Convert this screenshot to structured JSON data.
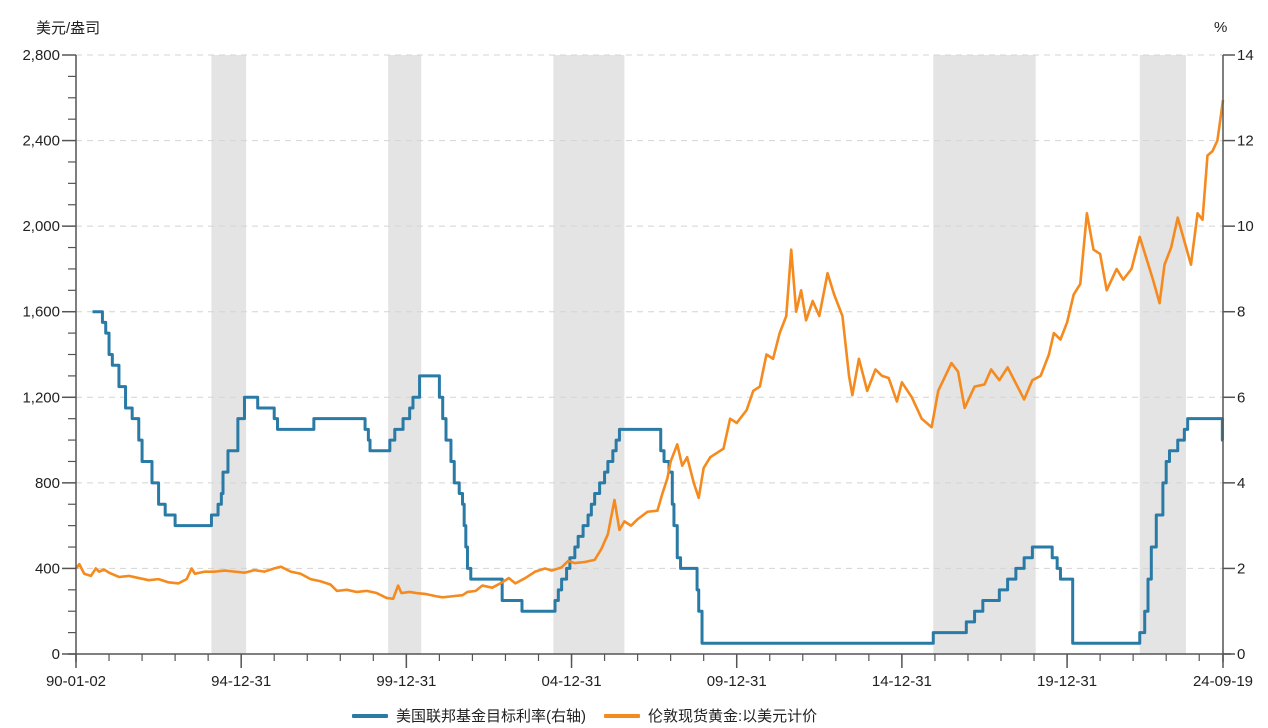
{
  "chart_data": {
    "type": "line",
    "title": "",
    "y_left_label": "美元/盎司",
    "y_right_label": "%",
    "y_left": {
      "min": 0,
      "max": 2800,
      "ticks": [
        0,
        400,
        800,
        1200,
        1600,
        2000,
        2400,
        2800
      ],
      "tick_labels": [
        "0",
        "400",
        "800",
        "1,200",
        "1,600",
        "2,000",
        "2,400",
        "2,800"
      ]
    },
    "y_right": {
      "min": 0,
      "max": 14,
      "ticks": [
        0,
        2,
        4,
        6,
        8,
        10,
        12,
        14
      ],
      "tick_labels": [
        "0",
        "2",
        "4",
        "6",
        "8",
        "10",
        "12",
        "14"
      ]
    },
    "x": {
      "start": 1990.0,
      "end": 2024.72,
      "major_ticks": [
        1990.0,
        1995.0,
        2000.0,
        2005.0,
        2010.0,
        2015.0,
        2020.0,
        2024.72
      ],
      "tick_labels": [
        "90-01-02",
        "94-12-31",
        "99-12-31",
        "04-12-31",
        "09-12-31",
        "14-12-31",
        "19-12-31",
        "24-09-19"
      ]
    },
    "grid": true,
    "legend_position": "bottom",
    "shaded_bands": [
      [
        1994.1,
        1995.15
      ],
      [
        1999.45,
        2000.45
      ],
      [
        2004.45,
        2006.6
      ],
      [
        2015.95,
        2019.05
      ],
      [
        2022.2,
        2023.6
      ]
    ],
    "series": [
      {
        "name": "美国联邦基金目标利率(右轴)",
        "axis": "right",
        "color": "#2a7aa6",
        "step": true,
        "points": [
          [
            1990.5,
            8.0
          ],
          [
            1990.8,
            7.75
          ],
          [
            1990.9,
            7.5
          ],
          [
            1991.0,
            7.0
          ],
          [
            1991.1,
            6.75
          ],
          [
            1991.3,
            6.25
          ],
          [
            1991.5,
            5.75
          ],
          [
            1991.7,
            5.5
          ],
          [
            1991.9,
            5.0
          ],
          [
            1992.0,
            4.5
          ],
          [
            1992.3,
            4.0
          ],
          [
            1992.5,
            3.5
          ],
          [
            1992.7,
            3.25
          ],
          [
            1993.0,
            3.0
          ],
          [
            1994.1,
            3.25
          ],
          [
            1994.3,
            3.5
          ],
          [
            1994.4,
            3.75
          ],
          [
            1994.45,
            4.25
          ],
          [
            1994.6,
            4.75
          ],
          [
            1994.9,
            5.5
          ],
          [
            1995.1,
            6.0
          ],
          [
            1995.5,
            5.75
          ],
          [
            1996.0,
            5.5
          ],
          [
            1996.1,
            5.25
          ],
          [
            1997.2,
            5.5
          ],
          [
            1998.75,
            5.25
          ],
          [
            1998.85,
            5.0
          ],
          [
            1998.9,
            4.75
          ],
          [
            1999.5,
            5.0
          ],
          [
            1999.65,
            5.25
          ],
          [
            1999.9,
            5.5
          ],
          [
            2000.1,
            5.75
          ],
          [
            2000.2,
            6.0
          ],
          [
            2000.4,
            6.5
          ],
          [
            2001.0,
            6.0
          ],
          [
            2001.1,
            5.5
          ],
          [
            2001.2,
            5.0
          ],
          [
            2001.35,
            4.5
          ],
          [
            2001.45,
            4.0
          ],
          [
            2001.6,
            3.75
          ],
          [
            2001.7,
            3.5
          ],
          [
            2001.75,
            3.0
          ],
          [
            2001.8,
            2.5
          ],
          [
            2001.85,
            2.0
          ],
          [
            2001.95,
            1.75
          ],
          [
            2002.9,
            1.25
          ],
          [
            2003.5,
            1.0
          ],
          [
            2004.5,
            1.25
          ],
          [
            2004.6,
            1.5
          ],
          [
            2004.7,
            1.75
          ],
          [
            2004.85,
            2.0
          ],
          [
            2004.95,
            2.25
          ],
          [
            2005.1,
            2.5
          ],
          [
            2005.2,
            2.75
          ],
          [
            2005.35,
            3.0
          ],
          [
            2005.5,
            3.25
          ],
          [
            2005.6,
            3.5
          ],
          [
            2005.7,
            3.75
          ],
          [
            2005.85,
            4.0
          ],
          [
            2006.0,
            4.25
          ],
          [
            2006.1,
            4.5
          ],
          [
            2006.25,
            4.75
          ],
          [
            2006.35,
            5.0
          ],
          [
            2006.45,
            5.25
          ],
          [
            2007.7,
            4.75
          ],
          [
            2007.8,
            4.5
          ],
          [
            2007.95,
            4.25
          ],
          [
            2008.05,
            3.5
          ],
          [
            2008.1,
            3.0
          ],
          [
            2008.2,
            2.25
          ],
          [
            2008.3,
            2.0
          ],
          [
            2008.8,
            1.5
          ],
          [
            2008.85,
            1.0
          ],
          [
            2008.95,
            0.25
          ],
          [
            2015.95,
            0.5
          ],
          [
            2016.95,
            0.75
          ],
          [
            2017.2,
            1.0
          ],
          [
            2017.45,
            1.25
          ],
          [
            2017.95,
            1.5
          ],
          [
            2018.2,
            1.75
          ],
          [
            2018.45,
            2.0
          ],
          [
            2018.7,
            2.25
          ],
          [
            2018.95,
            2.5
          ],
          [
            2019.55,
            2.25
          ],
          [
            2019.7,
            2.0
          ],
          [
            2019.8,
            1.75
          ],
          [
            2020.17,
            0.25
          ],
          [
            2022.2,
            0.5
          ],
          [
            2022.35,
            1.0
          ],
          [
            2022.45,
            1.75
          ],
          [
            2022.55,
            2.5
          ],
          [
            2022.7,
            3.25
          ],
          [
            2022.9,
            4.0
          ],
          [
            2023.0,
            4.5
          ],
          [
            2023.1,
            4.75
          ],
          [
            2023.35,
            5.0
          ],
          [
            2023.55,
            5.25
          ],
          [
            2023.65,
            5.5
          ],
          [
            2024.7,
            5.0
          ],
          [
            2024.72,
            5.0
          ]
        ]
      },
      {
        "name": "伦敦现货黄金:以美元计价",
        "axis": "left",
        "color": "#f58a1f",
        "step": false,
        "points": [
          [
            1990.0,
            400
          ],
          [
            1990.1,
            420
          ],
          [
            1990.25,
            375
          ],
          [
            1990.45,
            365
          ],
          [
            1990.6,
            400
          ],
          [
            1990.7,
            385
          ],
          [
            1990.85,
            395
          ],
          [
            1991.0,
            380
          ],
          [
            1991.3,
            360
          ],
          [
            1991.6,
            365
          ],
          [
            1991.9,
            355
          ],
          [
            1992.2,
            345
          ],
          [
            1992.5,
            350
          ],
          [
            1992.8,
            335
          ],
          [
            1993.1,
            330
          ],
          [
            1993.35,
            350
          ],
          [
            1993.5,
            400
          ],
          [
            1993.6,
            375
          ],
          [
            1993.9,
            385
          ],
          [
            1994.2,
            385
          ],
          [
            1994.5,
            390
          ],
          [
            1994.8,
            385
          ],
          [
            1995.1,
            380
          ],
          [
            1995.4,
            392
          ],
          [
            1995.7,
            385
          ],
          [
            1996.0,
            400
          ],
          [
            1996.2,
            408
          ],
          [
            1996.5,
            385
          ],
          [
            1996.8,
            375
          ],
          [
            1997.1,
            350
          ],
          [
            1997.4,
            340
          ],
          [
            1997.7,
            325
          ],
          [
            1997.9,
            295
          ],
          [
            1998.2,
            300
          ],
          [
            1998.5,
            290
          ],
          [
            1998.8,
            295
          ],
          [
            1999.1,
            285
          ],
          [
            1999.4,
            262
          ],
          [
            1999.6,
            258
          ],
          [
            1999.75,
            320
          ],
          [
            1999.85,
            285
          ],
          [
            2000.1,
            290
          ],
          [
            2000.3,
            285
          ],
          [
            2000.6,
            280
          ],
          [
            2000.9,
            270
          ],
          [
            2001.1,
            265
          ],
          [
            2001.4,
            270
          ],
          [
            2001.7,
            275
          ],
          [
            2001.85,
            290
          ],
          [
            2002.1,
            295
          ],
          [
            2002.3,
            320
          ],
          [
            2002.6,
            310
          ],
          [
            2002.9,
            335
          ],
          [
            2003.1,
            355
          ],
          [
            2003.3,
            330
          ],
          [
            2003.6,
            355
          ],
          [
            2003.9,
            385
          ],
          [
            2004.2,
            400
          ],
          [
            2004.4,
            390
          ],
          [
            2004.7,
            405
          ],
          [
            2004.9,
            435
          ],
          [
            2005.1,
            425
          ],
          [
            2005.4,
            430
          ],
          [
            2005.7,
            440
          ],
          [
            2005.9,
            490
          ],
          [
            2006.1,
            560
          ],
          [
            2006.3,
            720
          ],
          [
            2006.45,
            580
          ],
          [
            2006.6,
            620
          ],
          [
            2006.8,
            600
          ],
          [
            2007.0,
            630
          ],
          [
            2007.3,
            665
          ],
          [
            2007.6,
            670
          ],
          [
            2007.75,
            750
          ],
          [
            2007.9,
            820
          ],
          [
            2008.0,
            900
          ],
          [
            2008.2,
            980
          ],
          [
            2008.35,
            880
          ],
          [
            2008.5,
            920
          ],
          [
            2008.7,
            800
          ],
          [
            2008.85,
            730
          ],
          [
            2009.0,
            870
          ],
          [
            2009.2,
            920
          ],
          [
            2009.4,
            940
          ],
          [
            2009.6,
            960
          ],
          [
            2009.8,
            1100
          ],
          [
            2010.0,
            1080
          ],
          [
            2010.3,
            1140
          ],
          [
            2010.5,
            1230
          ],
          [
            2010.7,
            1250
          ],
          [
            2010.9,
            1400
          ],
          [
            2011.1,
            1380
          ],
          [
            2011.3,
            1500
          ],
          [
            2011.5,
            1580
          ],
          [
            2011.65,
            1890
          ],
          [
            2011.8,
            1600
          ],
          [
            2011.95,
            1700
          ],
          [
            2012.1,
            1560
          ],
          [
            2012.3,
            1650
          ],
          [
            2012.5,
            1580
          ],
          [
            2012.75,
            1780
          ],
          [
            2012.95,
            1680
          ],
          [
            2013.2,
            1580
          ],
          [
            2013.4,
            1300
          ],
          [
            2013.5,
            1210
          ],
          [
            2013.7,
            1380
          ],
          [
            2013.95,
            1230
          ],
          [
            2014.2,
            1330
          ],
          [
            2014.4,
            1300
          ],
          [
            2014.6,
            1290
          ],
          [
            2014.85,
            1180
          ],
          [
            2015.0,
            1270
          ],
          [
            2015.3,
            1200
          ],
          [
            2015.6,
            1100
          ],
          [
            2015.9,
            1060
          ],
          [
            2016.1,
            1230
          ],
          [
            2016.5,
            1360
          ],
          [
            2016.7,
            1320
          ],
          [
            2016.9,
            1150
          ],
          [
            2017.2,
            1250
          ],
          [
            2017.5,
            1260
          ],
          [
            2017.7,
            1330
          ],
          [
            2017.95,
            1280
          ],
          [
            2018.2,
            1340
          ],
          [
            2018.5,
            1250
          ],
          [
            2018.7,
            1190
          ],
          [
            2018.95,
            1280
          ],
          [
            2019.2,
            1300
          ],
          [
            2019.45,
            1400
          ],
          [
            2019.6,
            1500
          ],
          [
            2019.8,
            1470
          ],
          [
            2020.0,
            1550
          ],
          [
            2020.2,
            1680
          ],
          [
            2020.4,
            1730
          ],
          [
            2020.6,
            2060
          ],
          [
            2020.8,
            1890
          ],
          [
            2021.0,
            1870
          ],
          [
            2021.2,
            1700
          ],
          [
            2021.5,
            1800
          ],
          [
            2021.7,
            1750
          ],
          [
            2021.95,
            1800
          ],
          [
            2022.2,
            1950
          ],
          [
            2022.4,
            1850
          ],
          [
            2022.6,
            1750
          ],
          [
            2022.8,
            1640
          ],
          [
            2022.95,
            1820
          ],
          [
            2023.15,
            1900
          ],
          [
            2023.35,
            2040
          ],
          [
            2023.55,
            1930
          ],
          [
            2023.75,
            1820
          ],
          [
            2023.95,
            2060
          ],
          [
            2024.1,
            2030
          ],
          [
            2024.25,
            2330
          ],
          [
            2024.4,
            2350
          ],
          [
            2024.55,
            2400
          ],
          [
            2024.65,
            2510
          ],
          [
            2024.72,
            2590
          ]
        ]
      }
    ]
  },
  "legend": {
    "items": [
      {
        "label": "美国联邦基金目标利率(右轴)",
        "color": "#2a7aa6"
      },
      {
        "label": "伦敦现货黄金:以美元计价",
        "color": "#f58a1f"
      }
    ]
  },
  "axis_units": {
    "left": "美元/盎司",
    "right": "%"
  }
}
